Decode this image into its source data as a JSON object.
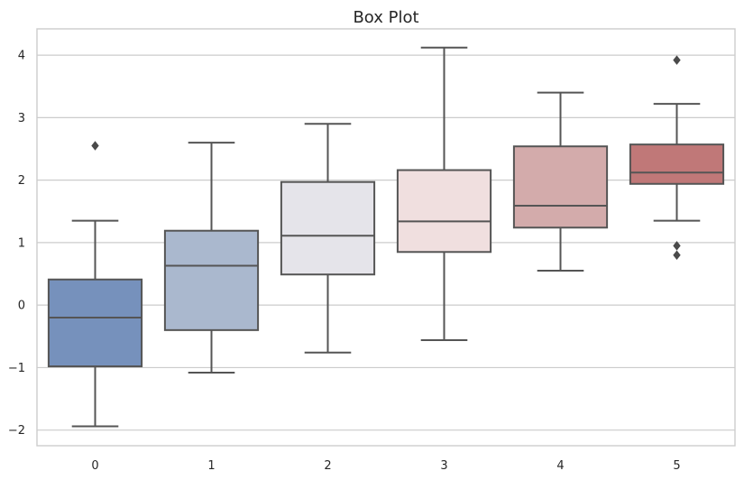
{
  "chart_data": {
    "type": "box",
    "title": "Box Plot",
    "xlabel": "",
    "ylabel": "",
    "ylim": [
      -2.25,
      4.42
    ],
    "yticks": [
      4,
      3,
      2,
      1,
      0,
      -1,
      -2
    ],
    "ytick_labels": [
      "4",
      "3",
      "2",
      "1",
      "0",
      "−1",
      "−2"
    ],
    "grid": true,
    "boxes": [
      {
        "label": "0",
        "color": "#7691bc",
        "whisker_low": -1.94,
        "q1": -0.98,
        "median": -0.2,
        "q3": 0.41,
        "whisker_high": 1.35,
        "outliers": [
          2.55
        ]
      },
      {
        "label": "1",
        "color": "#aab8ce",
        "whisker_low": -1.08,
        "q1": -0.4,
        "median": 0.63,
        "q3": 1.19,
        "whisker_high": 2.6,
        "outliers": []
      },
      {
        "label": "2",
        "color": "#e5e4ea",
        "whisker_low": -0.76,
        "q1": 0.49,
        "median": 1.11,
        "q3": 1.97,
        "whisker_high": 2.9,
        "outliers": []
      },
      {
        "label": "3",
        "color": "#f0dfdf",
        "whisker_low": -0.56,
        "q1": 0.85,
        "median": 1.34,
        "q3": 2.16,
        "whisker_high": 4.12,
        "outliers": []
      },
      {
        "label": "4",
        "color": "#d3abab",
        "whisker_low": 0.55,
        "q1": 1.24,
        "median": 1.59,
        "q3": 2.54,
        "whisker_high": 3.4,
        "outliers": []
      },
      {
        "label": "5",
        "color": "#c07878",
        "whisker_low": 1.35,
        "q1": 1.94,
        "median": 2.12,
        "q3": 2.57,
        "whisker_high": 3.22,
        "outliers": [
          3.92,
          0.95,
          0.8
        ]
      }
    ]
  }
}
